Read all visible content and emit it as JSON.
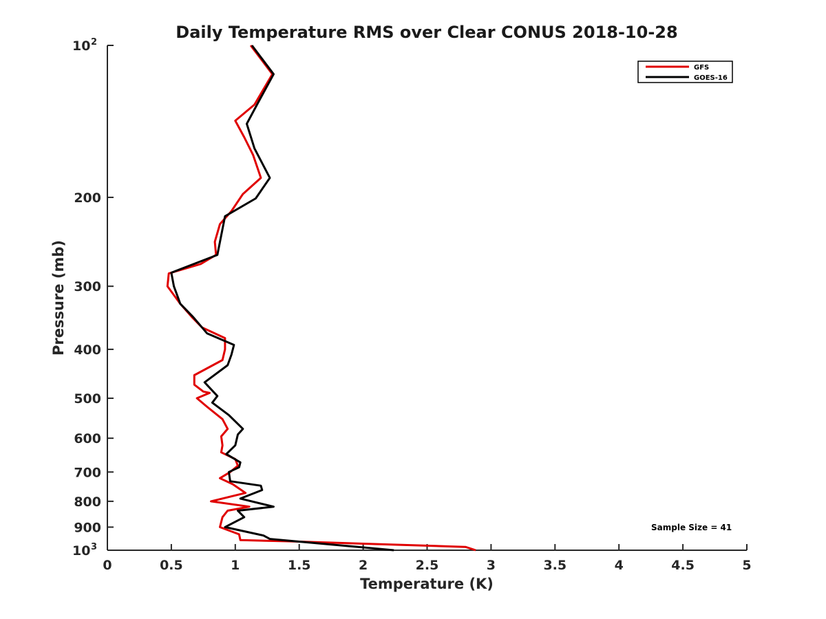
{
  "chart_data": {
    "type": "line",
    "title": "Daily Temperature RMS over Clear CONUS 2018-10-28",
    "xlabel": "Temperature (K)",
    "ylabel": "Pressure (mb)",
    "xlim": [
      0,
      5
    ],
    "ylim": [
      100,
      1000
    ],
    "yscale": "log",
    "y_reversed": true,
    "grid": false,
    "legend_position": "top-right",
    "x_ticks": [
      {
        "value": 0,
        "label": "0"
      },
      {
        "value": 0.5,
        "label": "0.5"
      },
      {
        "value": 1,
        "label": "1"
      },
      {
        "value": 1.5,
        "label": "1.5"
      },
      {
        "value": 2,
        "label": "2"
      },
      {
        "value": 2.5,
        "label": "2.5"
      },
      {
        "value": 3,
        "label": "3"
      },
      {
        "value": 3.5,
        "label": "3.5"
      },
      {
        "value": 4,
        "label": "4"
      },
      {
        "value": 4.5,
        "label": "4.5"
      },
      {
        "value": 5,
        "label": "5"
      }
    ],
    "y_ticks": [
      {
        "value": 100,
        "label": "10",
        "sup": "2"
      },
      {
        "value": 200,
        "label": "200"
      },
      {
        "value": 300,
        "label": "300"
      },
      {
        "value": 400,
        "label": "400"
      },
      {
        "value": 500,
        "label": "500"
      },
      {
        "value": 600,
        "label": "600"
      },
      {
        "value": 700,
        "label": "700"
      },
      {
        "value": 800,
        "label": "800"
      },
      {
        "value": 900,
        "label": "900"
      },
      {
        "value": 1000,
        "label": "10",
        "sup": "3"
      }
    ],
    "series": [
      {
        "name": "GFS",
        "color": "#e00000",
        "points": [
          [
            1.12,
            100
          ],
          [
            1.29,
            114
          ],
          [
            1.15,
            131
          ],
          [
            1.0,
            141
          ],
          [
            1.07,
            152
          ],
          [
            1.14,
            165
          ],
          [
            1.2,
            183
          ],
          [
            1.06,
            197
          ],
          [
            0.97,
            213
          ],
          [
            0.88,
            226
          ],
          [
            0.84,
            245
          ],
          [
            0.85,
            260
          ],
          [
            0.73,
            271
          ],
          [
            0.48,
            283
          ],
          [
            0.47,
            300
          ],
          [
            0.57,
            325
          ],
          [
            0.66,
            345
          ],
          [
            0.74,
            362
          ],
          [
            0.92,
            380
          ],
          [
            0.92,
            400
          ],
          [
            0.9,
            420
          ],
          [
            0.68,
            450
          ],
          [
            0.68,
            470
          ],
          [
            0.75,
            485
          ],
          [
            0.8,
            488
          ],
          [
            0.7,
            500
          ],
          [
            0.78,
            520
          ],
          [
            0.9,
            550
          ],
          [
            0.94,
            575
          ],
          [
            0.89,
            595
          ],
          [
            0.9,
            620
          ],
          [
            0.89,
            640
          ],
          [
            1.0,
            660
          ],
          [
            1.02,
            680
          ],
          [
            0.96,
            700
          ],
          [
            0.88,
            720
          ],
          [
            0.98,
            740
          ],
          [
            1.08,
            770
          ],
          [
            0.81,
            800
          ],
          [
            1.11,
            820
          ],
          [
            0.94,
            835
          ],
          [
            0.9,
            860
          ],
          [
            0.88,
            900
          ],
          [
            1.03,
            930
          ],
          [
            1.04,
            955
          ],
          [
            1.42,
            960
          ],
          [
            2.8,
            985
          ],
          [
            2.88,
            1000
          ]
        ]
      },
      {
        "name": "GOES-16",
        "color": "#000000",
        "points": [
          [
            1.13,
            100
          ],
          [
            1.3,
            114
          ],
          [
            1.17,
            131
          ],
          [
            1.09,
            143
          ],
          [
            1.15,
            160
          ],
          [
            1.27,
            183
          ],
          [
            1.16,
            201
          ],
          [
            0.92,
            218
          ],
          [
            0.86,
            260
          ],
          [
            0.5,
            282
          ],
          [
            0.52,
            300
          ],
          [
            0.57,
            325
          ],
          [
            0.67,
            345
          ],
          [
            0.78,
            372
          ],
          [
            0.99,
            392
          ],
          [
            0.97,
            410
          ],
          [
            0.94,
            430
          ],
          [
            0.76,
            465
          ],
          [
            0.86,
            495
          ],
          [
            0.82,
            510
          ],
          [
            0.95,
            540
          ],
          [
            1.06,
            575
          ],
          [
            1.02,
            590
          ],
          [
            1.0,
            620
          ],
          [
            0.93,
            645
          ],
          [
            1.04,
            670
          ],
          [
            1.03,
            685
          ],
          [
            0.95,
            700
          ],
          [
            0.96,
            730
          ],
          [
            1.2,
            745
          ],
          [
            1.21,
            760
          ],
          [
            1.04,
            790
          ],
          [
            1.3,
            820
          ],
          [
            1.02,
            835
          ],
          [
            1.07,
            860
          ],
          [
            0.92,
            900
          ],
          [
            1.22,
            935
          ],
          [
            1.27,
            950
          ],
          [
            2.24,
            1000
          ]
        ]
      }
    ],
    "annotations": [
      "Sample Size = 41"
    ]
  }
}
